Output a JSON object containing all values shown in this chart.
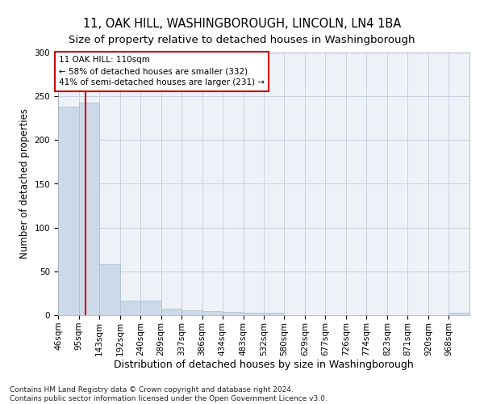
{
  "title": "11, OAK HILL, WASHINGBOROUGH, LINCOLN, LN4 1BA",
  "subtitle": "Size of property relative to detached houses in Washingborough",
  "xlabel": "Distribution of detached houses by size in Washingborough",
  "ylabel": "Number of detached properties",
  "bar_color": "#ccd9e8",
  "bar_edge_color": "#aabdd4",
  "background_color": "#eef2f8",
  "grid_color": "#c8cfe0",
  "vline_x": 110,
  "vline_color": "#cc0000",
  "annotation_line1": "11 OAK HILL: 110sqm",
  "annotation_line2": "← 58% of detached houses are smaller (332)",
  "annotation_line3": "41% of semi-detached houses are larger (231) →",
  "annotation_box_color": "#ffffff",
  "annotation_box_edge": "#cc0000",
  "bin_edges": [
    46,
    95,
    143,
    192,
    240,
    289,
    337,
    386,
    434,
    483,
    532,
    580,
    629,
    677,
    726,
    774,
    823,
    871,
    920,
    968,
    1017
  ],
  "bar_heights": [
    238,
    243,
    58,
    17,
    17,
    7,
    6,
    5,
    4,
    3,
    3,
    0,
    0,
    0,
    0,
    0,
    0,
    0,
    0,
    3
  ],
  "ylim": [
    0,
    300
  ],
  "yticks": [
    0,
    50,
    100,
    150,
    200,
    250,
    300
  ],
  "footer_text": "Contains HM Land Registry data © Crown copyright and database right 2024.\nContains public sector information licensed under the Open Government Licence v3.0.",
  "title_fontsize": 10.5,
  "subtitle_fontsize": 9.5,
  "xlabel_fontsize": 9,
  "ylabel_fontsize": 8.5,
  "tick_fontsize": 7.5,
  "footer_fontsize": 6.5
}
